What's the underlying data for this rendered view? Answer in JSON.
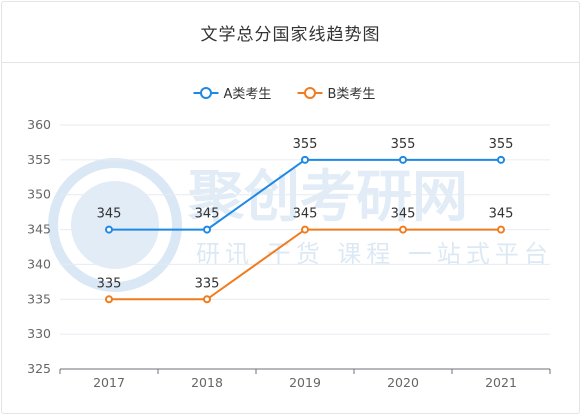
{
  "chart_data": {
    "type": "line",
    "title": "文学总分国家线趋势图",
    "categories": [
      "2017",
      "2018",
      "2019",
      "2020",
      "2021"
    ],
    "series": [
      {
        "name": "A类考生",
        "values": [
          345,
          345,
          355,
          355,
          355
        ],
        "color": "#1e88e5"
      },
      {
        "name": "B类考生",
        "values": [
          335,
          335,
          345,
          345,
          345
        ],
        "color": "#f07c1e"
      }
    ],
    "yticks": [
      325,
      330,
      335,
      340,
      345,
      350,
      355,
      360
    ],
    "ylim": [
      325,
      360
    ],
    "grid": true,
    "legend_position": "top-center",
    "xlabel": "",
    "ylabel": ""
  },
  "watermark": {
    "brand": "聚创考研网",
    "slogan": "研讯 干货 课程 一站式平台",
    "seal_text": "JUCHUANG EDUCATION",
    "seal_year": "2006"
  }
}
